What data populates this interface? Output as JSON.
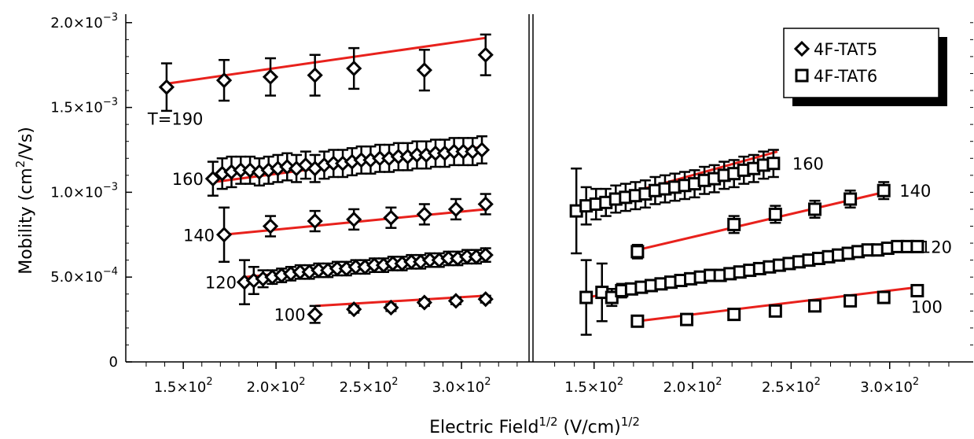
{
  "chart_data": {
    "type": "scatter",
    "xlabel_main": "Electric Field",
    "xlabel_sup1": "1/2",
    "xlabel_mid": " (V/cm)",
    "xlabel_sup2": "1/2",
    "ylabel_main": "Mobility (cm",
    "ylabel_sup": "2",
    "ylabel_end": "/Vs)",
    "ylim": [
      0,
      0.00205
    ],
    "xlim": [
      119,
      336
    ],
    "y_ticks": [
      {
        "value": 0,
        "mant": "0",
        "exp": ""
      },
      {
        "value": 0.0005,
        "mant": "5.0×10",
        "exp": "−4"
      },
      {
        "value": 0.001,
        "mant": "1.0×10",
        "exp": "−3"
      },
      {
        "value": 0.0015,
        "mant": "1.5×10",
        "exp": "−3"
      },
      {
        "value": 0.002,
        "mant": "2.0×10",
        "exp": "−3"
      }
    ],
    "x_ticks": [
      {
        "value": 150,
        "mant": "1.5×10",
        "exp": "2"
      },
      {
        "value": 200,
        "mant": "2.0×10",
        "exp": "2"
      },
      {
        "value": 250,
        "mant": "2.5×10",
        "exp": "2"
      },
      {
        "value": 300,
        "mant": "3.0×10",
        "exp": "2"
      }
    ],
    "legend": {
      "position": "top-right",
      "entries": [
        {
          "label": "4F-TAT5",
          "marker": "diamond"
        },
        {
          "label": "4F-TAT6",
          "marker": "square"
        }
      ]
    },
    "colors": {
      "fit": "#e8211c",
      "marker": "#000000"
    },
    "panels": [
      {
        "name": "4F-TAT5",
        "marker": "diamond",
        "series": [
          {
            "label": "T=190",
            "x": [
              141,
              172,
              197,
              221,
              242,
              280,
              313
            ],
            "y": [
              0.00162,
              0.00166,
              0.00168,
              0.00169,
              0.00173,
              0.00172,
              0.00181
            ],
            "err": [
              0.00014,
              0.00012,
              0.00011,
              0.00012,
              0.00012,
              0.00012,
              0.00012
            ],
            "fit": [
              [
                141,
                0.00164
              ],
              [
                313,
                0.00191
              ]
            ]
          },
          {
            "label": "160",
            "x": [
              166,
              171,
              176,
              181,
              186,
              191,
              196,
              201,
              206,
              211,
              216,
              221,
              226,
              231,
              236,
              241,
              246,
              251,
              256,
              261,
              266,
              271,
              276,
              281,
              286,
              291,
              296,
              301,
              306,
              311
            ],
            "y": [
              0.00108,
              0.00111,
              0.00112,
              0.00113,
              0.00113,
              0.00112,
              0.00113,
              0.00114,
              0.00115,
              0.00114,
              0.00116,
              0.00114,
              0.00116,
              0.00117,
              0.00117,
              0.00118,
              0.00119,
              0.00119,
              0.0012,
              0.0012,
              0.00121,
              0.00121,
              0.00122,
              0.00122,
              0.00123,
              0.00123,
              0.00124,
              0.00124,
              0.00124,
              0.00125
            ],
            "err": [
              0.0001,
              9e-05,
              9e-05,
              8e-05,
              8e-05,
              8e-05,
              8e-05,
              8e-05,
              8e-05,
              8e-05,
              8e-05,
              8e-05,
              8e-05,
              8e-05,
              8e-05,
              8e-05,
              8e-05,
              8e-05,
              8e-05,
              8e-05,
              8e-05,
              8e-05,
              8e-05,
              8e-05,
              8e-05,
              8e-05,
              8e-05,
              8e-05,
              8e-05,
              8e-05
            ],
            "fit": [
              [
                166,
                0.00106
              ],
              [
                313,
                0.00127
              ]
            ]
          },
          {
            "label": "140",
            "x": [
              172,
              197,
              221,
              242,
              262,
              280,
              297,
              313
            ],
            "y": [
              0.00075,
              0.0008,
              0.00083,
              0.00084,
              0.00085,
              0.00087,
              0.0009,
              0.00093
            ],
            "err": [
              0.00016,
              6e-05,
              6e-05,
              6e-05,
              6e-05,
              6e-05,
              6e-05,
              6e-05
            ],
            "fit": [
              [
                172,
                0.00075
              ],
              [
                313,
                0.0009
              ]
            ]
          },
          {
            "label": "120",
            "x": [
              183,
              188,
              193,
              198,
              203,
              208,
              213,
              218,
              223,
              228,
              233,
              238,
              243,
              248,
              253,
              258,
              263,
              268,
              273,
              278,
              283,
              288,
              293,
              298,
              303,
              308,
              313
            ],
            "y": [
              0.00047,
              0.00048,
              0.00049,
              0.0005,
              0.00051,
              0.00052,
              0.00053,
              0.00053,
              0.00054,
              0.00054,
              0.00055,
              0.00055,
              0.00056,
              0.00056,
              0.00057,
              0.00057,
              0.00058,
              0.00058,
              0.00059,
              0.00059,
              0.0006,
              0.0006,
              0.00061,
              0.00061,
              0.00062,
              0.00062,
              0.00063
            ],
            "err": [
              0.00013,
              8e-05,
              5e-05,
              4e-05,
              4e-05,
              4e-05,
              4e-05,
              4e-05,
              4e-05,
              4e-05,
              4e-05,
              4e-05,
              4e-05,
              4e-05,
              4e-05,
              4e-05,
              4e-05,
              4e-05,
              4e-05,
              4e-05,
              4e-05,
              4e-05,
              4e-05,
              4e-05,
              4e-05,
              4e-05,
              4e-05
            ],
            "fit": [
              [
                183,
                0.0005
              ],
              [
                313,
                0.00064
              ]
            ]
          },
          {
            "label": "100",
            "x": [
              221,
              242,
              262,
              280,
              297,
              313
            ],
            "y": [
              0.00028,
              0.00031,
              0.00032,
              0.00035,
              0.00036,
              0.00037
            ],
            "err": [
              5e-05,
              2e-05,
              2e-05,
              2e-05,
              2e-05,
              2e-05
            ],
            "fit": [
              [
                221,
                0.00033
              ],
              [
                313,
                0.00039
              ]
            ]
          }
        ]
      },
      {
        "name": "4F-TAT6",
        "marker": "square",
        "series": [
          {
            "label": "160",
            "x": [
              141,
              146,
              151,
              156,
              161,
              166,
              171,
              176,
              181,
              186,
              191,
              196,
              201,
              206,
              211,
              216,
              221,
              226,
              231,
              236,
              241
            ],
            "y": [
              0.00089,
              0.00092,
              0.00093,
              0.00094,
              0.00096,
              0.00097,
              0.00098,
              0.00099,
              0.00101,
              0.00102,
              0.00103,
              0.00104,
              0.00105,
              0.00107,
              0.00108,
              0.0011,
              0.00111,
              0.00113,
              0.00114,
              0.00116,
              0.00117
            ],
            "err": [
              0.00025,
              0.00011,
              9e-05,
              8e-05,
              8e-05,
              8e-05,
              8e-05,
              8e-05,
              8e-05,
              8e-05,
              8e-05,
              8e-05,
              8e-05,
              8e-05,
              8e-05,
              8e-05,
              8e-05,
              8e-05,
              8e-05,
              8e-05,
              8e-05
            ],
            "fit": [
              [
                141,
                0.00091
              ],
              [
                243,
                0.00124
              ]
            ]
          },
          {
            "label": "140",
            "x": [
              172,
              221,
              242,
              262,
              280,
              297
            ],
            "y": [
              0.00065,
              0.00081,
              0.00087,
              0.0009,
              0.00096,
              0.00101
            ],
            "err": [
              4e-05,
              5e-05,
              5e-05,
              5e-05,
              5e-05,
              5e-05
            ],
            "fit": [
              [
                172,
                0.00066
              ],
              [
                297,
                0.001
              ]
            ]
          },
          {
            "label": "120",
            "x": [
              146,
              154,
              159,
              164,
              169,
              174,
              179,
              184,
              189,
              194,
              199,
              204,
              209,
              214,
              219,
              224,
              229,
              234,
              239,
              244,
              249,
              254,
              259,
              264,
              269,
              274,
              279,
              284,
              289,
              294,
              299,
              304,
              309,
              314
            ],
            "y": [
              0.00038,
              0.00041,
              0.00038,
              0.00042,
              0.00043,
              0.00044,
              0.00045,
              0.00046,
              0.00047,
              0.00048,
              0.00049,
              0.0005,
              0.00051,
              0.00051,
              0.00052,
              0.00053,
              0.00054,
              0.00055,
              0.00056,
              0.00057,
              0.00058,
              0.00059,
              0.0006,
              0.00061,
              0.00062,
              0.00063,
              0.00064,
              0.00065,
              0.00066,
              0.00066,
              0.00067,
              0.00068,
              0.00068,
              0.00068
            ],
            "err": [
              0.00022,
              0.00017,
              5e-05,
              4e-05,
              3e-05,
              3e-05,
              3e-05,
              3e-05,
              3e-05,
              3e-05,
              3e-05,
              3e-05,
              3e-05,
              3e-05,
              3e-05,
              3e-05,
              3e-05,
              3e-05,
              3e-05,
              3e-05,
              3e-05,
              3e-05,
              3e-05,
              3e-05,
              3e-05,
              3e-05,
              3e-05,
              3e-05,
              3e-05,
              3e-05,
              3e-05,
              3e-05,
              3e-05,
              3e-05
            ],
            "fit": [
              [
                146,
                0.00038
              ],
              [
                314,
                0.00069
              ]
            ]
          },
          {
            "label": "100",
            "x": [
              172,
              197,
              221,
              242,
              262,
              280,
              297,
              314
            ],
            "y": [
              0.00024,
              0.00025,
              0.00028,
              0.0003,
              0.00033,
              0.00036,
              0.00038,
              0.00042
            ],
            "err": [
              2e-05,
              2e-05,
              2e-05,
              2e-05,
              2e-05,
              2e-05,
              2e-05,
              2e-05
            ],
            "fit": [
              [
                172,
                0.00024
              ],
              [
                314,
                0.00044
              ]
            ]
          }
        ]
      }
    ]
  }
}
